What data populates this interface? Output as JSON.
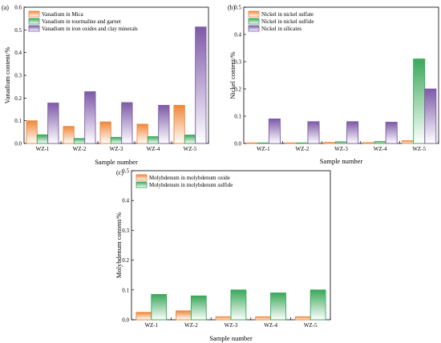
{
  "chart_data": [
    {
      "type": "bar",
      "panel_label": "(a)",
      "xlabel": "Sample number",
      "ylabel": "Vanadium content/%",
      "categories": [
        "WZ-1",
        "WZ-2",
        "WZ-3",
        "WZ-4",
        "WZ-5"
      ],
      "ylim": [
        0,
        0.6
      ],
      "yticks": [
        "0.0",
        "0.1",
        "0.2",
        "0.3",
        "0.4",
        "0.5",
        "0.6"
      ],
      "legend_position": "top-left",
      "series": [
        {
          "name": "Vanadium in Mica",
          "color": "#f0873a",
          "values": [
            0.1,
            0.075,
            0.095,
            0.085,
            0.168
          ]
        },
        {
          "name": "Vanadium in tourmaline and garnet",
          "color": "#3aa85a",
          "values": [
            0.038,
            0.022,
            0.027,
            0.03,
            0.037
          ]
        },
        {
          "name": "Vanadium in iron oxides and clay minerals",
          "color": "#7d5aa8",
          "values": [
            0.178,
            0.228,
            0.18,
            0.168,
            0.513
          ]
        }
      ]
    },
    {
      "type": "bar",
      "panel_label": "(b)",
      "xlabel": "Sample number",
      "ylabel": "Nickel content/%",
      "categories": [
        "WZ-1",
        "WZ-2",
        "WZ-3",
        "WZ-4",
        "WZ-5"
      ],
      "ylim": [
        0,
        0.5
      ],
      "yticks": [
        "0.0",
        "0.1",
        "0.2",
        "0.3",
        "0.4",
        "0.5"
      ],
      "legend_position": "top-left",
      "series": [
        {
          "name": "Nickel in nickel sulfate",
          "color": "#f0873a",
          "values": [
            0.002,
            0.002,
            0.004,
            0.003,
            0.01
          ]
        },
        {
          "name": "Nickel in nickel sulfide",
          "color": "#3aa85a",
          "values": [
            0.002,
            0.002,
            0.006,
            0.007,
            0.31
          ]
        },
        {
          "name": "Nickel in silicates",
          "color": "#7d5aa8",
          "values": [
            0.09,
            0.08,
            0.08,
            0.078,
            0.2
          ]
        }
      ]
    },
    {
      "type": "bar",
      "panel_label": "(c)",
      "xlabel": "Sample number",
      "ylabel": "Molybdenum content/%",
      "categories": [
        "WZ-1",
        "WZ-2",
        "WZ-3",
        "WZ-4",
        "WZ-5"
      ],
      "ylim": [
        0,
        0.5
      ],
      "yticks": [
        "0.0",
        "0.1",
        "0.2",
        "0.3",
        "0.4",
        "0.5"
      ],
      "legend_position": "top-left",
      "series": [
        {
          "name": "Molybdenum in molybdenum oxide",
          "color": "#f0873a",
          "values": [
            0.025,
            0.03,
            0.01,
            0.01,
            0.01
          ]
        },
        {
          "name": "Molybdenum in molybdenum sulfide",
          "color": "#3aa85a",
          "values": [
            0.085,
            0.08,
            0.1,
            0.09,
            0.1
          ]
        }
      ]
    }
  ]
}
